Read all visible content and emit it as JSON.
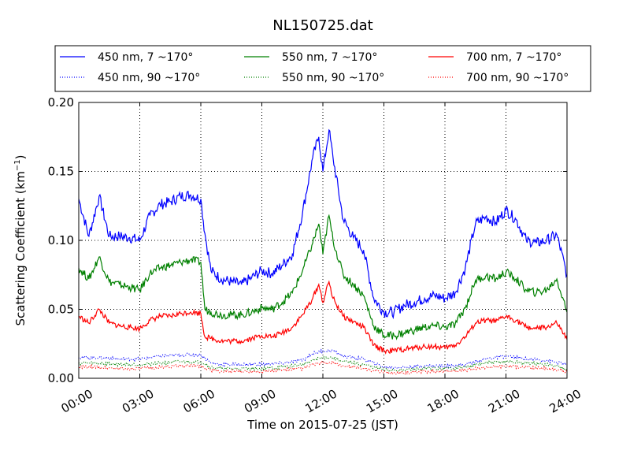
{
  "chart_data": {
    "type": "line",
    "title": "NL150725.dat",
    "xlabel": "Time on 2015-07-25 (JST)",
    "ylabel": "Scattering Coefficient (km",
    "ylabel_sup": "−1",
    "ylabel_close": ")",
    "xlim_hours": [
      0,
      24
    ],
    "ylim": [
      0.0,
      0.2
    ],
    "x_ticks": [
      {
        "value": 0,
        "label": "00:00"
      },
      {
        "value": 3,
        "label": "03:00"
      },
      {
        "value": 6,
        "label": "06:00"
      },
      {
        "value": 9,
        "label": "09:00"
      },
      {
        "value": 12,
        "label": "12:00"
      },
      {
        "value": 15,
        "label": "15:00"
      },
      {
        "value": 18,
        "label": "18:00"
      },
      {
        "value": 21,
        "label": "21:00"
      },
      {
        "value": 24,
        "label": "24:00"
      }
    ],
    "y_ticks": [
      {
        "value": 0.0,
        "label": "0.00"
      },
      {
        "value": 0.05,
        "label": "0.05"
      },
      {
        "value": 0.1,
        "label": "0.10"
      },
      {
        "value": 0.15,
        "label": "0.15"
      },
      {
        "value": 0.2,
        "label": "0.20"
      }
    ],
    "grid": true,
    "legend_position": "top",
    "series": [
      {
        "name": "450 nm, 7 ~170°",
        "color": "#0000ff",
        "style": "solid",
        "x": [
          0,
          0.5,
          1,
          1.5,
          2,
          2.5,
          3,
          3.5,
          4,
          4.5,
          5,
          5.5,
          6,
          6.2,
          6.5,
          7,
          7.5,
          8,
          8.5,
          9,
          9.5,
          10,
          10.5,
          11,
          11.5,
          11.8,
          12,
          12.3,
          12.5,
          13,
          13.5,
          14,
          14.5,
          15,
          15.5,
          16,
          16.5,
          17,
          17.5,
          18,
          18.5,
          19,
          19.5,
          20,
          20.5,
          21,
          21.5,
          22,
          22.5,
          23,
          23.5,
          24
        ],
        "y": [
          0.13,
          0.103,
          0.132,
          0.103,
          0.103,
          0.102,
          0.1,
          0.118,
          0.126,
          0.128,
          0.132,
          0.133,
          0.13,
          0.105,
          0.078,
          0.072,
          0.07,
          0.068,
          0.073,
          0.078,
          0.076,
          0.082,
          0.09,
          0.12,
          0.16,
          0.175,
          0.15,
          0.18,
          0.16,
          0.115,
          0.102,
          0.093,
          0.058,
          0.048,
          0.048,
          0.053,
          0.055,
          0.058,
          0.06,
          0.058,
          0.062,
          0.08,
          0.112,
          0.117,
          0.113,
          0.122,
          0.115,
          0.1,
          0.098,
          0.1,
          0.104,
          0.075
        ]
      },
      {
        "name": "550 nm, 7 ~170°",
        "color": "#008000",
        "style": "solid",
        "x": [
          0,
          0.5,
          1,
          1.5,
          2,
          2.5,
          3,
          3.5,
          4,
          4.5,
          5,
          5.5,
          6,
          6.2,
          6.5,
          7,
          7.5,
          8,
          8.5,
          9,
          9.5,
          10,
          10.5,
          11,
          11.5,
          11.8,
          12,
          12.3,
          12.5,
          13,
          13.5,
          14,
          14.5,
          15,
          15.5,
          16,
          16.5,
          17,
          17.5,
          18,
          18.5,
          19,
          19.5,
          20,
          20.5,
          21,
          21.5,
          22,
          22.5,
          23,
          23.5,
          24
        ],
        "y": [
          0.08,
          0.072,
          0.088,
          0.07,
          0.068,
          0.066,
          0.064,
          0.076,
          0.08,
          0.082,
          0.084,
          0.086,
          0.084,
          0.05,
          0.048,
          0.046,
          0.046,
          0.046,
          0.048,
          0.051,
          0.05,
          0.055,
          0.062,
          0.078,
          0.098,
          0.112,
          0.09,
          0.118,
          0.1,
          0.075,
          0.068,
          0.06,
          0.038,
          0.031,
          0.031,
          0.033,
          0.035,
          0.037,
          0.038,
          0.037,
          0.039,
          0.051,
          0.071,
          0.074,
          0.072,
          0.077,
          0.072,
          0.064,
          0.062,
          0.064,
          0.072,
          0.048
        ]
      },
      {
        "name": "700 nm, 7 ~170°",
        "color": "#ff0000",
        "style": "solid",
        "x": [
          0,
          0.5,
          1,
          1.5,
          2,
          2.5,
          3,
          3.5,
          4,
          4.5,
          5,
          5.5,
          6,
          6.2,
          6.5,
          7,
          7.5,
          8,
          8.5,
          9,
          9.5,
          10,
          10.5,
          11,
          11.5,
          11.8,
          12,
          12.3,
          12.5,
          13,
          13.5,
          14,
          14.5,
          15,
          15.5,
          16,
          16.5,
          17,
          17.5,
          18,
          18.5,
          19,
          19.5,
          20,
          20.5,
          21,
          21.5,
          22,
          22.5,
          23,
          23.5,
          24
        ],
        "y": [
          0.045,
          0.04,
          0.05,
          0.04,
          0.038,
          0.037,
          0.036,
          0.042,
          0.045,
          0.045,
          0.047,
          0.048,
          0.047,
          0.03,
          0.029,
          0.027,
          0.027,
          0.027,
          0.029,
          0.031,
          0.03,
          0.033,
          0.037,
          0.046,
          0.058,
          0.068,
          0.055,
          0.07,
          0.058,
          0.045,
          0.041,
          0.037,
          0.024,
          0.02,
          0.02,
          0.021,
          0.022,
          0.023,
          0.023,
          0.022,
          0.024,
          0.03,
          0.04,
          0.042,
          0.041,
          0.045,
          0.042,
          0.037,
          0.036,
          0.037,
          0.04,
          0.028
        ]
      },
      {
        "name": "450 nm, 90 ~170°",
        "color": "#0000ff",
        "style": "dotted",
        "x": [
          0,
          1,
          2,
          3,
          4,
          5,
          6,
          6.5,
          7,
          8,
          9,
          10,
          11,
          11.5,
          12,
          12.5,
          13,
          14,
          15,
          16,
          17,
          18,
          19,
          20,
          21,
          22,
          23,
          24
        ],
        "y": [
          0.015,
          0.015,
          0.014,
          0.014,
          0.016,
          0.017,
          0.017,
          0.011,
          0.01,
          0.01,
          0.01,
          0.011,
          0.013,
          0.018,
          0.02,
          0.02,
          0.016,
          0.014,
          0.008,
          0.008,
          0.009,
          0.009,
          0.01,
          0.014,
          0.016,
          0.014,
          0.013,
          0.01
        ]
      },
      {
        "name": "550 nm, 90 ~170°",
        "color": "#008000",
        "style": "dotted",
        "x": [
          0,
          1,
          2,
          3,
          4,
          5,
          6,
          6.5,
          7,
          8,
          9,
          10,
          11,
          11.5,
          12,
          12.5,
          13,
          14,
          15,
          16,
          17,
          18,
          19,
          20,
          21,
          22,
          23,
          24
        ],
        "y": [
          0.011,
          0.011,
          0.01,
          0.01,
          0.011,
          0.012,
          0.012,
          0.008,
          0.007,
          0.007,
          0.007,
          0.008,
          0.01,
          0.013,
          0.015,
          0.015,
          0.012,
          0.01,
          0.006,
          0.006,
          0.007,
          0.007,
          0.008,
          0.011,
          0.012,
          0.011,
          0.01,
          0.007
        ]
      },
      {
        "name": "700 nm, 90 ~170°",
        "color": "#ff0000",
        "style": "dotted",
        "x": [
          0,
          1,
          2,
          3,
          4,
          5,
          6,
          6.5,
          7,
          8,
          9,
          10,
          11,
          11.5,
          12,
          12.5,
          13,
          14,
          15,
          16,
          17,
          18,
          19,
          20,
          21,
          22,
          23,
          24
        ],
        "y": [
          0.008,
          0.008,
          0.007,
          0.007,
          0.008,
          0.009,
          0.009,
          0.006,
          0.005,
          0.005,
          0.005,
          0.006,
          0.007,
          0.01,
          0.011,
          0.011,
          0.009,
          0.007,
          0.004,
          0.004,
          0.005,
          0.005,
          0.006,
          0.008,
          0.009,
          0.008,
          0.007,
          0.005
        ]
      }
    ]
  }
}
